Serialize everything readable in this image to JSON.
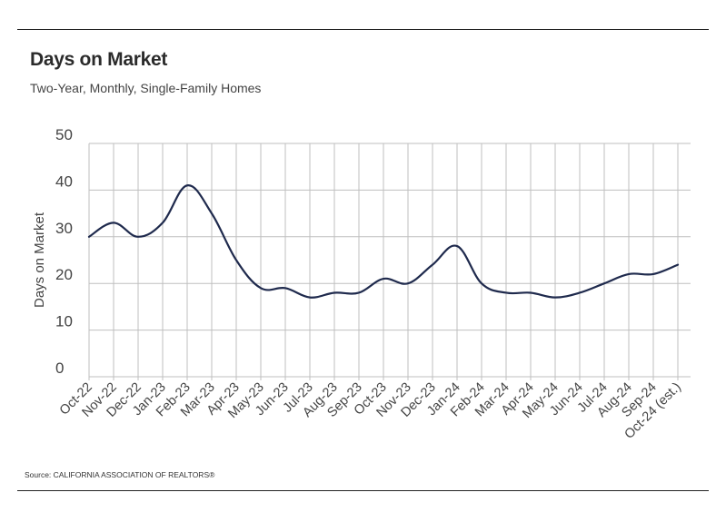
{
  "header": {
    "title": "Days on Market",
    "subtitle": "Two-Year, Monthly, Single-Family Homes"
  },
  "footer": {
    "source": "Source:  CALIFORNIA ASSOCIATION OF REALTORS®"
  },
  "colors": {
    "line": "#1f2a4d",
    "grid": "#bfbfbf",
    "text": "#444444"
  },
  "chart_data": {
    "type": "line",
    "title": "Days on Market",
    "subtitle": "Two-Year, Monthly, Single-Family Homes",
    "xlabel": "",
    "ylabel": "Days on Market",
    "ylim": [
      0,
      50
    ],
    "yticks": [
      0,
      10,
      20,
      30,
      40,
      50
    ],
    "grid": true,
    "legend": "none",
    "categories": [
      "Oct-22",
      "Nov-22",
      "Dec-22",
      "Jan-23",
      "Feb-23",
      "Mar-23",
      "Apr-23",
      "May-23",
      "Jun-23",
      "Jul-23",
      "Aug-23",
      "Sep-23",
      "Oct-23",
      "Nov-23",
      "Dec-23",
      "Jan-24",
      "Feb-24",
      "Mar-24",
      "Apr-24",
      "May-24",
      "Jun-24",
      "Jul-24",
      "Aug-24",
      "Sep-24",
      "Oct-24 (est.)"
    ],
    "series": [
      {
        "values": [
          30,
          33,
          30,
          33,
          41,
          35,
          25,
          19,
          19,
          17,
          18,
          18,
          21,
          20,
          24,
          28,
          20,
          18,
          18,
          17,
          18,
          20,
          22,
          22,
          24
        ]
      }
    ]
  }
}
